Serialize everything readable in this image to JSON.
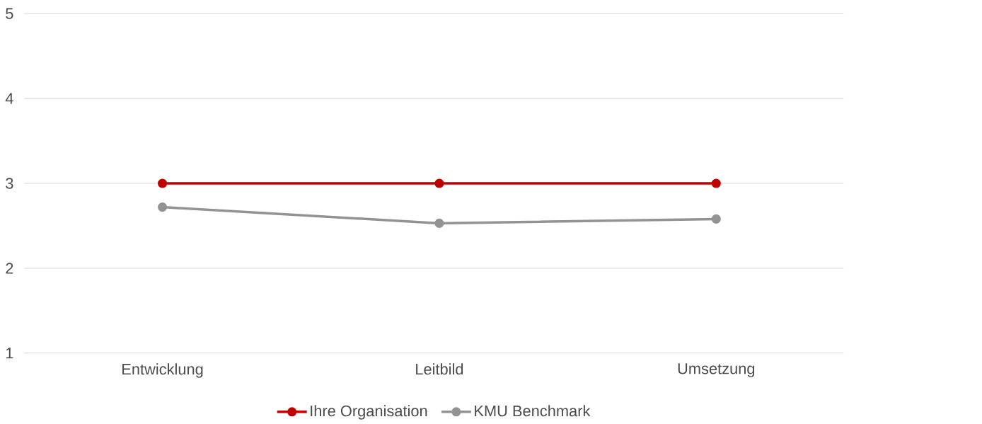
{
  "chart_data": {
    "type": "line",
    "categories": [
      "Entwicklung",
      "Leitbild",
      "Umsetzung"
    ],
    "series": [
      {
        "name": "Ihre Organisation",
        "color": "#c00000",
        "values": [
          3,
          3,
          3
        ]
      },
      {
        "name": "KMU Benchmark",
        "color": "#939393",
        "values": [
          2.72,
          2.53,
          2.58
        ]
      }
    ],
    "ylim": [
      1,
      5
    ],
    "yticks": [
      1,
      2,
      3,
      4,
      5
    ],
    "grid": "y",
    "legend": "bottom",
    "marker": "circle",
    "line_style": "solid"
  }
}
